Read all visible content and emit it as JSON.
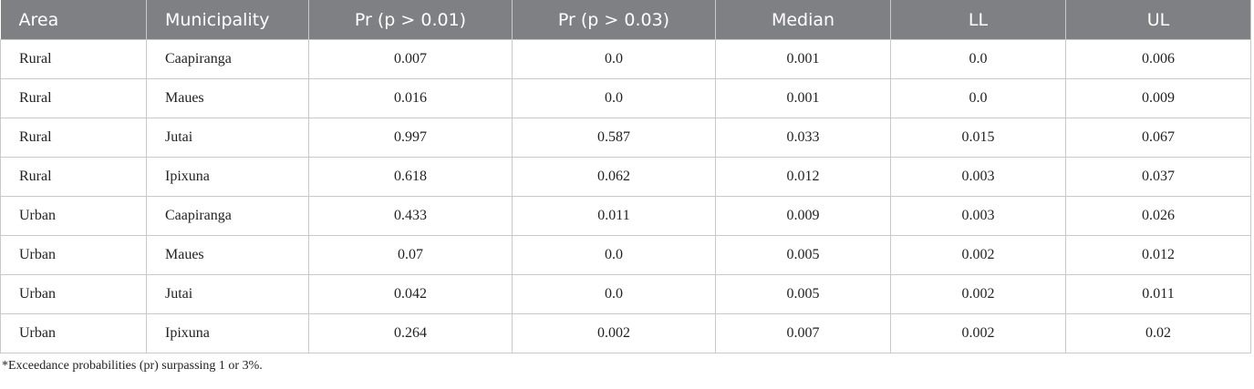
{
  "table": {
    "header": [
      "Area",
      "Municipality",
      "Pr (p > 0.01)",
      "Pr (p > 0.03)",
      "Median",
      "LL",
      "UL"
    ],
    "rows": [
      [
        "Rural",
        "Caapiranga",
        "0.007",
        "0.0",
        "0.001",
        "0.0",
        "0.006"
      ],
      [
        "Rural",
        "Maues",
        "0.016",
        "0.0",
        "0.001",
        "0.0",
        "0.009"
      ],
      [
        "Rural",
        "Jutai",
        "0.997",
        "0.587",
        "0.033",
        "0.015",
        "0.067"
      ],
      [
        "Rural",
        "Ipixuna",
        "0.618",
        "0.062",
        "0.012",
        "0.003",
        "0.037"
      ],
      [
        "Urban",
        "Caapiranga",
        "0.433",
        "0.011",
        "0.009",
        "0.003",
        "0.026"
      ],
      [
        "Urban",
        "Maues",
        "0.07",
        "0.0",
        "0.005",
        "0.002",
        "0.012"
      ],
      [
        "Urban",
        "Jutai",
        "0.042",
        "0.0",
        "0.005",
        "0.002",
        "0.011"
      ],
      [
        "Urban",
        "Ipixuna",
        "0.264",
        "0.002",
        "0.007",
        "0.002",
        "0.02"
      ]
    ]
  },
  "footnote": "*Exceedance probabilities (pr) surpassing 1 or 3%."
}
